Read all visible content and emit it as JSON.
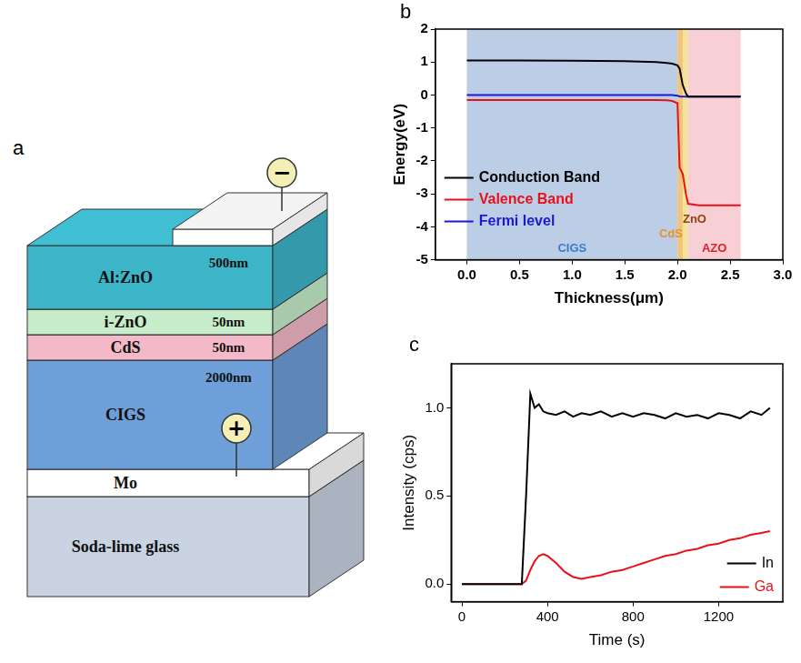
{
  "diagram": {
    "panel": "a",
    "layers": [
      {
        "name": "Al:ZnO",
        "thickness": "500nm",
        "color": "#3db5c9"
      },
      {
        "name": "i-ZnO",
        "thickness": "50nm",
        "color": "#c6ecc9"
      },
      {
        "name": "CdS",
        "thickness": "50nm",
        "color": "#f3b9c8"
      },
      {
        "name": "CIGS",
        "thickness": "2000nm",
        "color": "#6f9fd8"
      },
      {
        "name": "Mo",
        "color": "#ffffff"
      },
      {
        "name": "Soda-lime glass",
        "color": "#c9d3e2"
      }
    ],
    "terminals": {
      "negative": "−",
      "positive": "+"
    }
  },
  "chart_data": [
    {
      "panel": "b",
      "type": "line",
      "x_label": "Thickness(μm)",
      "y_label": "Energy(eV)",
      "xlim": [
        -0.3,
        3.0
      ],
      "xticks": [
        {
          "value": 0,
          "label": "0.0"
        },
        0.5,
        {
          "value": 1,
          "label": "1.0"
        },
        1.5,
        {
          "value": 2,
          "label": "2.0"
        },
        2.5,
        {
          "value": 3,
          "label": "3.0"
        }
      ],
      "ylim": [
        -5,
        2
      ],
      "yticks": [
        -5,
        -4,
        -3,
        -2,
        -1,
        0,
        1,
        2
      ],
      "grid": false,
      "legend": "lower left",
      "x": [
        0,
        0.5,
        1.0,
        1.5,
        1.8,
        1.9,
        1.95,
        2.0,
        2.02,
        2.05,
        2.08,
        2.1,
        2.2,
        2.4,
        2.6
      ],
      "series": [
        {
          "name": "Conduction Band",
          "color": "#000000",
          "values": [
            1.05,
            1.05,
            1.04,
            1.03,
            1.0,
            0.97,
            0.95,
            0.9,
            0.8,
            0.3,
            0.05,
            -0.05,
            -0.05,
            -0.05,
            -0.05
          ]
        },
        {
          "name": "Valence Band",
          "color": "#e8111a",
          "values": [
            -0.15,
            -0.15,
            -0.15,
            -0.15,
            -0.15,
            -0.16,
            -0.18,
            -0.25,
            -2.2,
            -2.4,
            -3.0,
            -3.3,
            -3.35,
            -3.35,
            -3.35
          ]
        },
        {
          "name": "Fermi level",
          "color": "#1a1ad0",
          "values": [
            0,
            0,
            0,
            0,
            0,
            0,
            0,
            -0.02,
            -0.04,
            -0.05,
            -0.05,
            -0.05,
            -0.05,
            -0.05,
            -0.05
          ]
        }
      ],
      "regions": [
        {
          "label": "CIGS",
          "start": 0,
          "end": 2.0,
          "color": "#bccde6",
          "label_color": "#3a7dc9"
        },
        {
          "label": "CdS",
          "start": 2.0,
          "end": 2.05,
          "color": "#f2c37a",
          "label_color": "#e8922a"
        },
        {
          "label": "ZnO",
          "start": 2.05,
          "end": 2.1,
          "color": "#f3e29a",
          "label_color": "#8b4513"
        },
        {
          "label": "AZO",
          "start": 2.1,
          "end": 2.6,
          "color": "#f8cfd5",
          "label_color": "#e0202a"
        }
      ]
    },
    {
      "panel": "c",
      "type": "line",
      "x_label": "Time (s)",
      "y_label": "Intensity (cps)",
      "xlim": [
        -50,
        1500
      ],
      "xticks": [
        0,
        400,
        800,
        1200
      ],
      "ylim": [
        -0.1,
        1.25
      ],
      "yticks": [
        {
          "value": 0,
          "label": "0.0"
        },
        0.5,
        {
          "value": 1,
          "label": "1.0"
        }
      ],
      "grid": false,
      "legend": "lower right",
      "x": [
        0,
        100,
        200,
        280,
        300,
        320,
        340,
        360,
        380,
        400,
        440,
        480,
        520,
        560,
        600,
        650,
        700,
        750,
        800,
        850,
        900,
        950,
        1000,
        1050,
        1100,
        1150,
        1200,
        1250,
        1300,
        1350,
        1400,
        1440
      ],
      "series": [
        {
          "name": "In",
          "color": "#000000",
          "values": [
            0,
            0,
            0,
            0,
            0.5,
            1.08,
            1.0,
            1.02,
            0.98,
            0.97,
            0.96,
            0.98,
            0.95,
            0.97,
            0.96,
            0.98,
            0.95,
            0.97,
            0.95,
            0.97,
            0.96,
            0.94,
            0.97,
            0.95,
            0.96,
            0.94,
            0.97,
            0.96,
            0.94,
            0.98,
            0.96,
            1.0
          ]
        },
        {
          "name": "Ga",
          "color": "#e8111a",
          "values": [
            0,
            0,
            0,
            0,
            0.02,
            0.08,
            0.13,
            0.16,
            0.17,
            0.16,
            0.12,
            0.07,
            0.04,
            0.03,
            0.04,
            0.05,
            0.07,
            0.08,
            0.1,
            0.12,
            0.14,
            0.16,
            0.17,
            0.19,
            0.2,
            0.22,
            0.23,
            0.25,
            0.26,
            0.28,
            0.29,
            0.3
          ]
        }
      ]
    }
  ]
}
